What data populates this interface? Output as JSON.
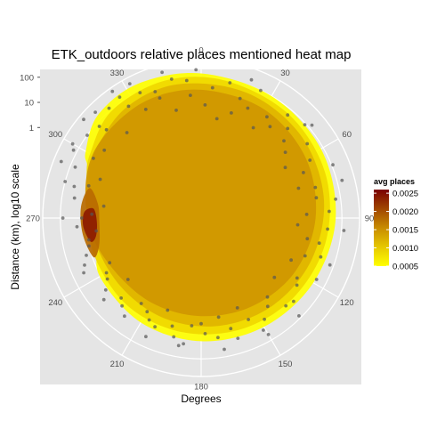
{
  "chart_data": {
    "type": "heatmap",
    "coordinate_system": "polar",
    "title": "ETK_outdoors relative places mentioned heat map",
    "xlabel": "Degrees",
    "ylabel": "Distance (km), log10 scale",
    "angle_ticks": [
      {
        "deg": 0,
        "label": "0"
      },
      {
        "deg": 30,
        "label": "30"
      },
      {
        "deg": 60,
        "label": "60"
      },
      {
        "deg": 90,
        "label": "90"
      },
      {
        "deg": 120,
        "label": "120"
      },
      {
        "deg": 150,
        "label": "150"
      },
      {
        "deg": 180,
        "label": "180"
      },
      {
        "deg": 210,
        "label": "210"
      },
      {
        "deg": 240,
        "label": "240"
      },
      {
        "deg": 270,
        "label": "270"
      },
      {
        "deg": 300,
        "label": "300"
      },
      {
        "deg": 330,
        "label": "330"
      }
    ],
    "radial_ticks": [
      {
        "value": 1,
        "label": "1"
      },
      {
        "value": 10,
        "label": "10"
      },
      {
        "value": 100,
        "label": "100"
      }
    ],
    "radial_scale": "log10",
    "radial_range_log10": [
      -3.6,
      2.7
    ],
    "legend": {
      "title": "avg places",
      "position": "right",
      "gradient": [
        "#ffff00",
        "#e6c800",
        "#c88c00",
        "#a04600",
        "#7a0000"
      ],
      "range": [
        0.0005,
        0.0026
      ],
      "ticks": [
        {
          "value": 0.0005,
          "label": "0.0005"
        },
        {
          "value": 0.001,
          "label": "0.0010"
        },
        {
          "value": 0.0015,
          "label": "0.0015"
        },
        {
          "value": 0.002,
          "label": "0.0020"
        },
        {
          "value": 0.0025,
          "label": "0.0025"
        }
      ]
    },
    "density_levels": [
      {
        "level": 0.0006,
        "color": "#ffff00",
        "points": [
          [
            300,
            1.7
          ],
          [
            315,
            2.2
          ],
          [
            335,
            2.3
          ],
          [
            0,
            2.15
          ],
          [
            30,
            2.0
          ],
          [
            60,
            1.9
          ],
          [
            90,
            1.75
          ],
          [
            120,
            1.55
          ],
          [
            150,
            1.4
          ],
          [
            180,
            1.3
          ],
          [
            210,
            1.2
          ],
          [
            240,
            1.05
          ],
          [
            255,
            0.6
          ],
          [
            268,
            0.25
          ],
          [
            275,
            0.0
          ],
          [
            285,
            0.9
          ],
          [
            295,
            1.4
          ]
        ]
      },
      {
        "level": 0.0009,
        "color": "#f0d800",
        "points": [
          [
            300,
            1.5
          ],
          [
            320,
            1.95
          ],
          [
            345,
            2.05
          ],
          [
            10,
            1.95
          ],
          [
            40,
            1.8
          ],
          [
            70,
            1.65
          ],
          [
            100,
            1.45
          ],
          [
            130,
            1.25
          ],
          [
            160,
            1.1
          ],
          [
            190,
            1.0
          ],
          [
            220,
            0.95
          ],
          [
            250,
            0.9
          ],
          [
            275,
            0.95
          ],
          [
            290,
            1.25
          ]
        ]
      },
      {
        "level": 0.0012,
        "color": "#e0b400",
        "points": [
          [
            300,
            1.35
          ],
          [
            325,
            1.7
          ],
          [
            350,
            1.8
          ],
          [
            20,
            1.7
          ],
          [
            50,
            1.55
          ],
          [
            80,
            1.35
          ],
          [
            110,
            1.1
          ],
          [
            140,
            0.9
          ],
          [
            170,
            0.75
          ],
          [
            200,
            0.65
          ],
          [
            230,
            0.6
          ],
          [
            260,
            0.75
          ],
          [
            285,
            1.0
          ]
        ]
      },
      {
        "level": 0.0016,
        "color": "#cf9600",
        "points": [
          [
            290,
            1.25
          ],
          [
            310,
            1.45
          ],
          [
            335,
            1.55
          ],
          [
            0,
            1.5
          ],
          [
            30,
            1.4
          ],
          [
            60,
            1.2
          ],
          [
            90,
            0.95
          ],
          [
            120,
            0.7
          ],
          [
            150,
            0.45
          ],
          [
            180,
            0.3
          ],
          [
            210,
            0.3
          ],
          [
            240,
            0.45
          ],
          [
            265,
            0.85
          ]
        ]
      },
      {
        "level": 0.002,
        "color": "#b86a00",
        "points": [
          [
            250,
            0.95
          ],
          [
            262,
            1.15
          ],
          [
            275,
            1.2
          ],
          [
            285,
            1.0
          ],
          [
            278,
            0.55
          ],
          [
            268,
            0.45
          ],
          [
            255,
            0.6
          ]
        ]
      },
      {
        "level": 0.0024,
        "color": "#8c1a00",
        "points": [
          [
            258,
            0.9
          ],
          [
            266,
            1.1
          ],
          [
            273,
            1.05
          ],
          [
            275,
            0.7
          ],
          [
            268,
            0.55
          ],
          [
            260,
            0.65
          ]
        ]
      }
    ],
    "points": [
      [
        5,
        1.6
      ],
      [
        12,
        1.9
      ],
      [
        18,
        1.4
      ],
      [
        25,
        2.0
      ],
      [
        33,
        1.2
      ],
      [
        40,
        1.75
      ],
      [
        47,
        0.9
      ],
      [
        55,
        1.55
      ],
      [
        62,
        1.3
      ],
      [
        68,
        2.05
      ],
      [
        75,
        1.1
      ],
      [
        82,
        1.8
      ],
      [
        88,
        0.6
      ],
      [
        95,
        1.45
      ],
      [
        102,
        1.2
      ],
      [
        110,
        0.8
      ],
      [
        118,
        1.6
      ],
      [
        125,
        1.05
      ],
      [
        132,
        1.35
      ],
      [
        140,
        0.5
      ],
      [
        148,
        1.15
      ],
      [
        155,
        0.85
      ],
      [
        163,
        1.4
      ],
      [
        170,
        0.4
      ],
      [
        178,
        1.0
      ],
      [
        185,
        0.7
      ],
      [
        193,
        1.25
      ],
      [
        200,
        0.3
      ],
      [
        207,
        0.95
      ],
      [
        215,
        0.55
      ],
      [
        222,
        1.1
      ],
      [
        230,
        0.2
      ],
      [
        237,
        0.85
      ],
      [
        244,
        0.45
      ],
      [
        252,
        1.2
      ],
      [
        259,
        0.95
      ],
      [
        266,
        1.35
      ],
      [
        272,
        0.75
      ],
      [
        279,
        1.5
      ],
      [
        286,
        1.05
      ],
      [
        292,
        1.8
      ],
      [
        299,
        1.3
      ],
      [
        306,
        2.0
      ],
      [
        313,
        1.55
      ],
      [
        320,
        2.1
      ],
      [
        327,
        1.7
      ],
      [
        334,
        1.95
      ],
      [
        341,
        1.45
      ],
      [
        348,
        2.05
      ],
      [
        355,
        1.3
      ],
      [
        2,
        0.9
      ],
      [
        9,
        0.4
      ],
      [
        16,
        0.75
      ],
      [
        23,
        1.15
      ],
      [
        30,
        0.55
      ],
      [
        37,
        0.95
      ],
      [
        44,
        1.35
      ],
      [
        52,
        0.65
      ],
      [
        59,
        0.3
      ],
      [
        66,
        0.85
      ],
      [
        73,
        0.45
      ],
      [
        80,
        1.05
      ],
      [
        87,
        1.5
      ],
      [
        94,
        0.25
      ],
      [
        101,
        0.7
      ],
      [
        108,
        1.4
      ],
      [
        115,
        0.35
      ],
      [
        122,
        0.9
      ],
      [
        129,
        0.15
      ],
      [
        136,
        1.25
      ],
      [
        143,
        0.8
      ],
      [
        151,
        1.5
      ],
      [
        158,
        0.25
      ],
      [
        165,
        0.95
      ],
      [
        172,
        1.2
      ],
      [
        180,
        0.6
      ],
      [
        188,
        1.45
      ],
      [
        195,
        0.85
      ],
      [
        203,
        1.1
      ],
      [
        210,
        0.7
      ],
      [
        218,
        1.35
      ],
      [
        225,
        0.9
      ],
      [
        233,
        1.15
      ],
      [
        240,
        0.75
      ],
      [
        248,
        1.4
      ],
      [
        256,
        1.0
      ],
      [
        263,
        0.6
      ],
      [
        270,
        1.15
      ],
      [
        277,
        0.3
      ],
      [
        284,
        1.6
      ],
      [
        291,
        0.7
      ],
      [
        298,
        2.15
      ],
      [
        305,
        1.1
      ],
      [
        312,
        1.85
      ],
      [
        319,
        0.9
      ],
      [
        326,
        2.2
      ],
      [
        333,
        1.25
      ],
      [
        340,
        1.75
      ],
      [
        347,
        0.8
      ],
      [
        354,
        1.9
      ],
      [
        358,
        2.3
      ],
      [
        315,
        2.35
      ],
      [
        300,
        2.3
      ],
      [
        292,
        2.4
      ],
      [
        285,
        2.0
      ],
      [
        332,
        2.45
      ],
      [
        345,
        2.4
      ],
      [
        20,
        2.25
      ],
      [
        50,
        2.15
      ],
      [
        75,
        2.2
      ],
      [
        95,
        2.1
      ],
      [
        135,
        1.9
      ],
      [
        170,
        1.7
      ],
      [
        205,
        1.6
      ],
      [
        245,
        1.55
      ],
      [
        270,
        1.9
      ],
      [
        310,
        2.5
      ],
      [
        325,
        2.55
      ],
      [
        48,
        1.95
      ],
      [
        110,
        1.85
      ],
      [
        150,
        1.75
      ],
      [
        190,
        1.55
      ],
      [
        230,
        1.45
      ]
    ]
  }
}
